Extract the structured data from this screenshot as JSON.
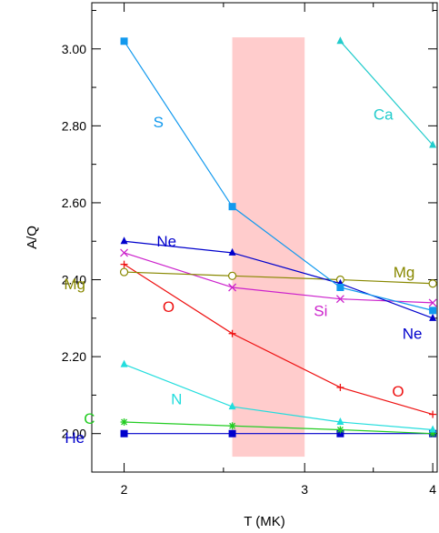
{
  "chart_data": {
    "type": "line",
    "xlabel": "T (MK)",
    "ylabel": "A/Q",
    "x_scale": "log",
    "xlim": [
      1.86,
      4.04
    ],
    "ylim": [
      1.9,
      3.12
    ],
    "x_ticks": [
      {
        "value": 2,
        "label": "2"
      },
      {
        "value": 3,
        "label": "3"
      },
      {
        "value": 4,
        "label": "4"
      }
    ],
    "y_ticks": [
      {
        "value": 2.0,
        "label": "2.00"
      },
      {
        "value": 2.2,
        "label": "2.20"
      },
      {
        "value": 2.4,
        "label": "2.40"
      },
      {
        "value": 2.6,
        "label": "2.60"
      },
      {
        "value": 2.8,
        "label": "2.80"
      },
      {
        "value": 3.0,
        "label": "3.00"
      }
    ],
    "shaded_band": {
      "x": [
        2.55,
        3.0
      ],
      "y": [
        1.94,
        3.03
      ],
      "color": "#ffcccc"
    },
    "grid": false,
    "legend": "none",
    "series": [
      {
        "name": "He",
        "color": "#0000cc",
        "marker": "square",
        "label_pos": [
          1.79,
          1.99
        ],
        "x": [
          2.0,
          2.55,
          3.25,
          4.0
        ],
        "y": [
          2.0,
          2.0,
          2.0,
          2.0
        ]
      },
      {
        "name": "C",
        "color": "#22cc22",
        "marker": "star",
        "label_pos": [
          1.85,
          2.04
        ],
        "x": [
          2.0,
          2.55,
          3.25,
          4.0
        ],
        "y": [
          2.03,
          2.02,
          2.01,
          2.0
        ]
      },
      {
        "name": "N",
        "color": "#22dddd",
        "marker": "triangle",
        "label_pos": [
          2.25,
          2.09
        ],
        "x": [
          2.0,
          2.55,
          3.25,
          4.0
        ],
        "y": [
          2.18,
          2.07,
          2.03,
          2.01
        ]
      },
      {
        "name": "O",
        "color": "#ee1111",
        "marker": "plus",
        "label_pos": [
          2.21,
          2.33
        ],
        "x": [
          2.0,
          2.55,
          3.25,
          4.0
        ],
        "y": [
          2.44,
          2.26,
          2.12,
          2.05
        ]
      },
      {
        "name": "O",
        "color": "#ee1111",
        "marker": "none",
        "label_pos": [
          3.7,
          2.11
        ],
        "x": [],
        "y": []
      },
      {
        "name": "Si",
        "color": "#cc22cc",
        "marker": "cross",
        "label_pos": [
          3.11,
          2.32
        ],
        "x": [
          2.0,
          2.55,
          3.25,
          4.0
        ],
        "y": [
          2.47,
          2.38,
          2.35,
          2.34
        ]
      },
      {
        "name": "Mg",
        "color": "#888800",
        "marker": "circle",
        "label_pos": [
          1.79,
          2.39
        ],
        "x": [
          2.0,
          2.55,
          3.25,
          4.0
        ],
        "y": [
          2.42,
          2.41,
          2.4,
          2.39
        ]
      },
      {
        "name": "Mg",
        "color": "#888800",
        "marker": "none",
        "label_pos": [
          3.75,
          2.42
        ],
        "x": [],
        "y": []
      },
      {
        "name": "Ne",
        "color": "#0000cc",
        "marker": "triangle-filled",
        "label_pos": [
          2.2,
          2.5
        ],
        "x": [
          2.0,
          2.55,
          3.25,
          4.0
        ],
        "y": [
          2.5,
          2.47,
          2.39,
          2.3
        ]
      },
      {
        "name": "Ne",
        "color": "#0000cc",
        "marker": "none",
        "label_pos": [
          3.82,
          2.26
        ],
        "x": [],
        "y": []
      },
      {
        "name": "S",
        "color": "#1199ee",
        "marker": "square",
        "label_pos": [
          2.16,
          2.81
        ],
        "x": [
          2.0,
          2.55,
          3.25,
          4.0
        ],
        "y": [
          3.02,
          2.59,
          2.38,
          2.32
        ]
      },
      {
        "name": "Ca",
        "color": "#22cccc",
        "marker": "triangle",
        "label_pos": [
          3.58,
          2.83
        ],
        "x": [
          3.25,
          4.0
        ],
        "y": [
          3.02,
          2.75
        ]
      }
    ]
  }
}
